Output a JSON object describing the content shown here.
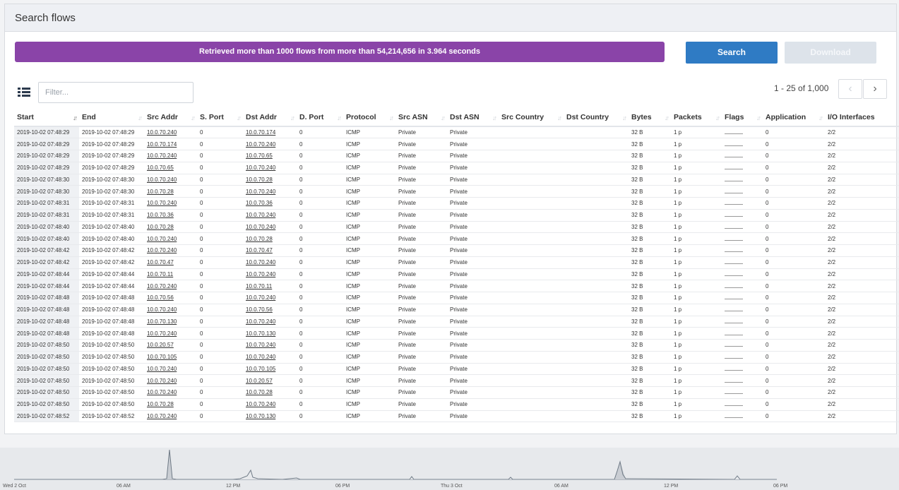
{
  "panel": {
    "title": "Search flows"
  },
  "notice": "Retrieved more than 1000 flows from more than 54,214,656 in 3.964 seconds",
  "buttons": {
    "search": "Search",
    "download": "Download"
  },
  "filter": {
    "placeholder": "Filter...",
    "value": ""
  },
  "pager": {
    "text": "1 - 25 of 1,000",
    "prev": "‹",
    "next": "›"
  },
  "columns": [
    "Start",
    "End",
    "Src Addr",
    "S. Port",
    "Dst Addr",
    "D. Port",
    "Protocol",
    "Src ASN",
    "Dst ASN",
    "Src Country",
    "Dst Country",
    "Bytes",
    "Packets",
    "Flags",
    "Application",
    "I/O Interfaces"
  ],
  "rows": [
    [
      "2019-10-02 07:48:29",
      "2019-10-02 07:48:29",
      "10.0.70.240",
      "0",
      "10.0.70.174",
      "0",
      "ICMP",
      "Private",
      "Private",
      "",
      "",
      "32 B",
      "1 p",
      "",
      "0",
      "2/2"
    ],
    [
      "2019-10-02 07:48:29",
      "2019-10-02 07:48:29",
      "10.0.70.174",
      "0",
      "10.0.70.240",
      "0",
      "ICMP",
      "Private",
      "Private",
      "",
      "",
      "32 B",
      "1 p",
      "",
      "0",
      "2/2"
    ],
    [
      "2019-10-02 07:48:29",
      "2019-10-02 07:48:29",
      "10.0.70.240",
      "0",
      "10.0.70.65",
      "0",
      "ICMP",
      "Private",
      "Private",
      "",
      "",
      "32 B",
      "1 p",
      "",
      "0",
      "2/2"
    ],
    [
      "2019-10-02 07:48:29",
      "2019-10-02 07:48:29",
      "10.0.70.65",
      "0",
      "10.0.70.240",
      "0",
      "ICMP",
      "Private",
      "Private",
      "",
      "",
      "32 B",
      "1 p",
      "",
      "0",
      "2/2"
    ],
    [
      "2019-10-02 07:48:30",
      "2019-10-02 07:48:30",
      "10.0.70.240",
      "0",
      "10.0.70.28",
      "0",
      "ICMP",
      "Private",
      "Private",
      "",
      "",
      "32 B",
      "1 p",
      "",
      "0",
      "2/2"
    ],
    [
      "2019-10-02 07:48:30",
      "2019-10-02 07:48:30",
      "10.0.70.28",
      "0",
      "10.0.70.240",
      "0",
      "ICMP",
      "Private",
      "Private",
      "",
      "",
      "32 B",
      "1 p",
      "",
      "0",
      "2/2"
    ],
    [
      "2019-10-02 07:48:31",
      "2019-10-02 07:48:31",
      "10.0.70.240",
      "0",
      "10.0.70.36",
      "0",
      "ICMP",
      "Private",
      "Private",
      "",
      "",
      "32 B",
      "1 p",
      "",
      "0",
      "2/2"
    ],
    [
      "2019-10-02 07:48:31",
      "2019-10-02 07:48:31",
      "10.0.70.36",
      "0",
      "10.0.70.240",
      "0",
      "ICMP",
      "Private",
      "Private",
      "",
      "",
      "32 B",
      "1 p",
      "",
      "0",
      "2/2"
    ],
    [
      "2019-10-02 07:48:40",
      "2019-10-02 07:48:40",
      "10.0.70.28",
      "0",
      "10.0.70.240",
      "0",
      "ICMP",
      "Private",
      "Private",
      "",
      "",
      "32 B",
      "1 p",
      "",
      "0",
      "2/2"
    ],
    [
      "2019-10-02 07:48:40",
      "2019-10-02 07:48:40",
      "10.0.70.240",
      "0",
      "10.0.70.28",
      "0",
      "ICMP",
      "Private",
      "Private",
      "",
      "",
      "32 B",
      "1 p",
      "",
      "0",
      "2/2"
    ],
    [
      "2019-10-02 07:48:42",
      "2019-10-02 07:48:42",
      "10.0.70.240",
      "0",
      "10.0.70.47",
      "0",
      "ICMP",
      "Private",
      "Private",
      "",
      "",
      "32 B",
      "1 p",
      "",
      "0",
      "2/2"
    ],
    [
      "2019-10-02 07:48:42",
      "2019-10-02 07:48:42",
      "10.0.70.47",
      "0",
      "10.0.70.240",
      "0",
      "ICMP",
      "Private",
      "Private",
      "",
      "",
      "32 B",
      "1 p",
      "",
      "0",
      "2/2"
    ],
    [
      "2019-10-02 07:48:44",
      "2019-10-02 07:48:44",
      "10.0.70.11",
      "0",
      "10.0.70.240",
      "0",
      "ICMP",
      "Private",
      "Private",
      "",
      "",
      "32 B",
      "1 p",
      "",
      "0",
      "2/2"
    ],
    [
      "2019-10-02 07:48:44",
      "2019-10-02 07:48:44",
      "10.0.70.240",
      "0",
      "10.0.70.11",
      "0",
      "ICMP",
      "Private",
      "Private",
      "",
      "",
      "32 B",
      "1 p",
      "",
      "0",
      "2/2"
    ],
    [
      "2019-10-02 07:48:48",
      "2019-10-02 07:48:48",
      "10.0.70.56",
      "0",
      "10.0.70.240",
      "0",
      "ICMP",
      "Private",
      "Private",
      "",
      "",
      "32 B",
      "1 p",
      "",
      "0",
      "2/2"
    ],
    [
      "2019-10-02 07:48:48",
      "2019-10-02 07:48:48",
      "10.0.70.240",
      "0",
      "10.0.70.56",
      "0",
      "ICMP",
      "Private",
      "Private",
      "",
      "",
      "32 B",
      "1 p",
      "",
      "0",
      "2/2"
    ],
    [
      "2019-10-02 07:48:48",
      "2019-10-02 07:48:48",
      "10.0.70.130",
      "0",
      "10.0.70.240",
      "0",
      "ICMP",
      "Private",
      "Private",
      "",
      "",
      "32 B",
      "1 p",
      "",
      "0",
      "2/2"
    ],
    [
      "2019-10-02 07:48:48",
      "2019-10-02 07:48:48",
      "10.0.70.240",
      "0",
      "10.0.70.130",
      "0",
      "ICMP",
      "Private",
      "Private",
      "",
      "",
      "32 B",
      "1 p",
      "",
      "0",
      "2/2"
    ],
    [
      "2019-10-02 07:48:50",
      "2019-10-02 07:48:50",
      "10.0.20.57",
      "0",
      "10.0.70.240",
      "0",
      "ICMP",
      "Private",
      "Private",
      "",
      "",
      "32 B",
      "1 p",
      "",
      "0",
      "2/2"
    ],
    [
      "2019-10-02 07:48:50",
      "2019-10-02 07:48:50",
      "10.0.70.105",
      "0",
      "10.0.70.240",
      "0",
      "ICMP",
      "Private",
      "Private",
      "",
      "",
      "32 B",
      "1 p",
      "",
      "0",
      "2/2"
    ],
    [
      "2019-10-02 07:48:50",
      "2019-10-02 07:48:50",
      "10.0.70.240",
      "0",
      "10.0.70.105",
      "0",
      "ICMP",
      "Private",
      "Private",
      "",
      "",
      "32 B",
      "1 p",
      "",
      "0",
      "2/2"
    ],
    [
      "2019-10-02 07:48:50",
      "2019-10-02 07:48:50",
      "10.0.70.240",
      "0",
      "10.0.20.57",
      "0",
      "ICMP",
      "Private",
      "Private",
      "",
      "",
      "32 B",
      "1 p",
      "",
      "0",
      "2/2"
    ],
    [
      "2019-10-02 07:48:50",
      "2019-10-02 07:48:50",
      "10.0.70.240",
      "0",
      "10.0.70.28",
      "0",
      "ICMP",
      "Private",
      "Private",
      "",
      "",
      "32 B",
      "1 p",
      "",
      "0",
      "2/2"
    ],
    [
      "2019-10-02 07:48:50",
      "2019-10-02 07:48:50",
      "10.0.70.28",
      "0",
      "10.0.70.240",
      "0",
      "ICMP",
      "Private",
      "Private",
      "",
      "",
      "32 B",
      "1 p",
      "",
      "0",
      "2/2"
    ],
    [
      "2019-10-02 07:48:52",
      "2019-10-02 07:48:52",
      "10.0.70.240",
      "0",
      "10.0.70.130",
      "0",
      "ICMP",
      "Private",
      "Private",
      "",
      "",
      "32 B",
      "1 p",
      "",
      "0",
      "2/2"
    ]
  ],
  "timeline": {
    "labels": [
      "Wed 2 Oct",
      "06 AM",
      "12 PM",
      "06 PM",
      "Thu 3 Oct",
      "06 AM",
      "12 PM",
      "06 PM"
    ]
  },
  "colors": {
    "notice": "#8a44a8",
    "search": "#2f7bc4",
    "download": "#dde3ea"
  }
}
